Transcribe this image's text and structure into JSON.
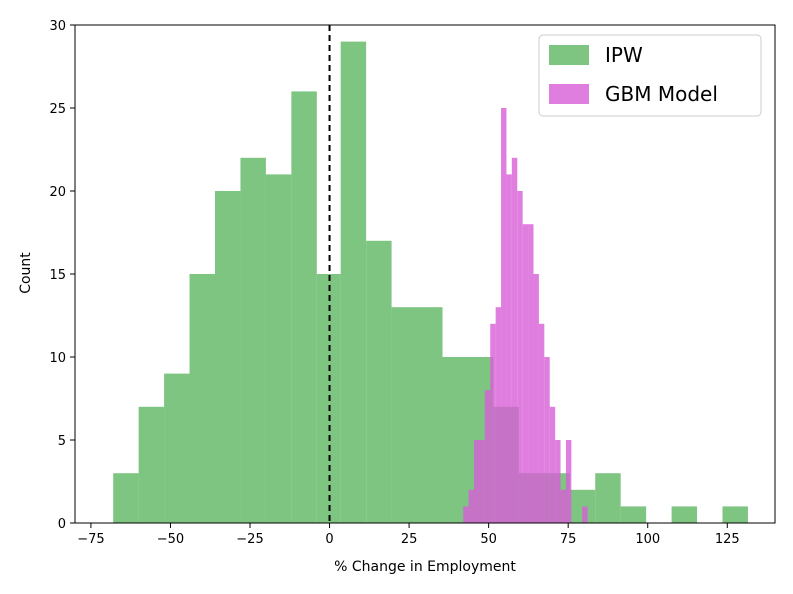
{
  "chart_data": {
    "type": "bar",
    "subtype": "overlaid-histogram",
    "xlabel": "% Change in Employment",
    "ylabel": "Count",
    "xlim": [
      -80,
      140
    ],
    "ylim": [
      0,
      30
    ],
    "xticks": [
      -75,
      -50,
      -25,
      0,
      25,
      50,
      75,
      100,
      125
    ],
    "xtick_labels": [
      "−75",
      "−50",
      "−25",
      "0",
      "25",
      "50",
      "75",
      "100",
      "125"
    ],
    "yticks": [
      0,
      5,
      10,
      15,
      20,
      25,
      30
    ],
    "ytick_labels": [
      "0",
      "5",
      "10",
      "15",
      "20",
      "25",
      "30"
    ],
    "grid": false,
    "legend_position": "top-right",
    "reference_line": {
      "x": 0,
      "style": "dashed",
      "color": "#000000"
    },
    "series": [
      {
        "name": "IPW",
        "color": "#4caf50",
        "alpha": 0.72,
        "bins": [
          {
            "x0": -68.0,
            "x1": -60.0,
            "count": 3
          },
          {
            "x0": -60.0,
            "x1": -52.0,
            "count": 7
          },
          {
            "x0": -52.0,
            "x1": -44.0,
            "count": 9
          },
          {
            "x0": -44.0,
            "x1": -36.0,
            "count": 15
          },
          {
            "x0": -36.0,
            "x1": -28.0,
            "count": 20
          },
          {
            "x0": -28.0,
            "x1": -20.0,
            "count": 22
          },
          {
            "x0": -20.0,
            "x1": -12.0,
            "count": 21
          },
          {
            "x0": -12.0,
            "x1": -4.0,
            "count": 26
          },
          {
            "x0": -4.0,
            "x1": 3.5,
            "count": 15
          },
          {
            "x0": 3.5,
            "x1": 11.5,
            "count": 29
          },
          {
            "x0": 11.5,
            "x1": 19.5,
            "count": 17
          },
          {
            "x0": 19.5,
            "x1": 35.5,
            "count": 13
          },
          {
            "x0": 35.5,
            "x1": 51.5,
            "count": 10
          },
          {
            "x0": 51.5,
            "x1": 59.5,
            "count": 7
          },
          {
            "x0": 59.5,
            "x1": 75.5,
            "count": 3
          },
          {
            "x0": 75.5,
            "x1": 83.5,
            "count": 2
          },
          {
            "x0": 83.5,
            "x1": 91.5,
            "count": 3
          },
          {
            "x0": 91.5,
            "x1": 99.5,
            "count": 1
          },
          {
            "x0": 107.5,
            "x1": 115.5,
            "count": 1
          },
          {
            "x0": 123.5,
            "x1": 131.5,
            "count": 1
          }
        ]
      },
      {
        "name": "GBM Model",
        "color": "#d85ed8",
        "alpha": 0.8,
        "bins": [
          {
            "x0": 42.0,
            "x1": 43.7,
            "count": 1
          },
          {
            "x0": 43.7,
            "x1": 45.4,
            "count": 2
          },
          {
            "x0": 45.4,
            "x1": 47.1,
            "count": 5
          },
          {
            "x0": 47.1,
            "x1": 48.8,
            "count": 5
          },
          {
            "x0": 48.8,
            "x1": 50.5,
            "count": 8
          },
          {
            "x0": 50.5,
            "x1": 52.2,
            "count": 12
          },
          {
            "x0": 52.2,
            "x1": 53.9,
            "count": 13
          },
          {
            "x0": 53.9,
            "x1": 55.6,
            "count": 25
          },
          {
            "x0": 55.6,
            "x1": 57.3,
            "count": 21
          },
          {
            "x0": 57.3,
            "x1": 59.0,
            "count": 22
          },
          {
            "x0": 59.0,
            "x1": 60.7,
            "count": 20
          },
          {
            "x0": 60.7,
            "x1": 62.4,
            "count": 18
          },
          {
            "x0": 62.4,
            "x1": 64.1,
            "count": 18
          },
          {
            "x0": 64.1,
            "x1": 65.8,
            "count": 15
          },
          {
            "x0": 65.8,
            "x1": 67.5,
            "count": 12
          },
          {
            "x0": 67.5,
            "x1": 69.2,
            "count": 10
          },
          {
            "x0": 69.2,
            "x1": 70.9,
            "count": 7
          },
          {
            "x0": 70.9,
            "x1": 72.6,
            "count": 5
          },
          {
            "x0": 72.6,
            "x1": 74.3,
            "count": 2
          },
          {
            "x0": 74.3,
            "x1": 76.0,
            "count": 5
          },
          {
            "x0": 79.4,
            "x1": 81.1,
            "count": 1
          }
        ]
      }
    ]
  }
}
